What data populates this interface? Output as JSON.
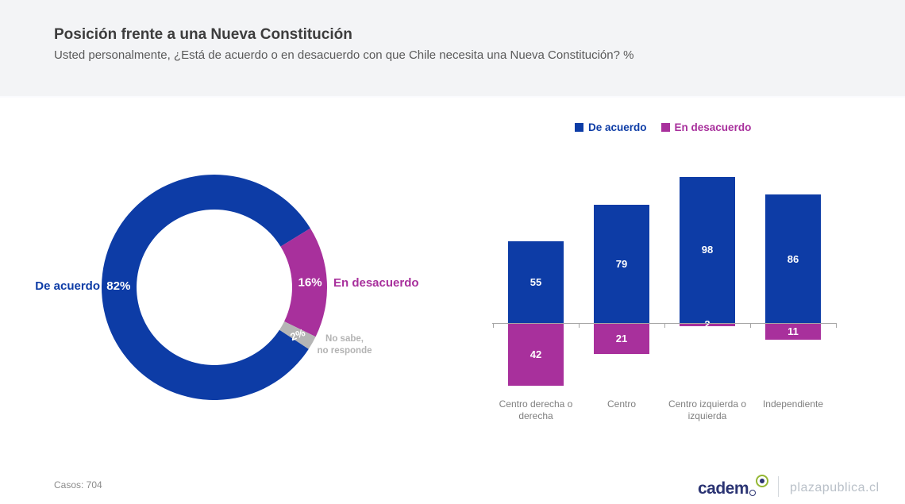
{
  "header": {
    "title": "Posición frente a una Nueva Constitución",
    "subtitle": "Usted personalmente, ¿Está de acuerdo o en desacuerdo con que Chile necesita una Nueva Constitución? %"
  },
  "colors": {
    "agree_blue": "#0d3ca6",
    "disagree_magenta": "#a8309c",
    "no_answer_gray": "#b5b5b5",
    "axis_gray": "#a6a6a6",
    "band_gray": "#f3f4f6"
  },
  "legend": [
    {
      "label": "De acuerdo",
      "color": "#0d3ca6"
    },
    {
      "label": "En desacuerdo",
      "color": "#a8309c"
    }
  ],
  "donut_callouts": {
    "left": "De acuerdo",
    "right": "En desacuerdo",
    "bottom_line1": "No sabe,",
    "bottom_line2": "no responde"
  },
  "chart_data": [
    {
      "type": "pie",
      "subtype": "donut",
      "labels": [
        "De acuerdo",
        "En desacuerdo",
        "No sabe, no responde"
      ],
      "values": [
        82,
        16,
        2
      ],
      "value_suffix": "%",
      "colors": [
        "#0d3ca6",
        "#a8309c",
        "#b5b5b5"
      ],
      "start_angle_deg": 123.2,
      "inner_radius_ratio": 0.69,
      "legend_position": "none"
    },
    {
      "type": "bar",
      "subtype": "diverging-column",
      "categories": [
        "Centro derecha o derecha",
        "Centro",
        "Centro izquierda o izquierda",
        "Independiente"
      ],
      "series": [
        {
          "name": "De acuerdo",
          "direction": "up",
          "color": "#0d3ca6",
          "values": [
            55,
            79,
            98,
            86
          ]
        },
        {
          "name": "En desacuerdo",
          "direction": "down",
          "color": "#a8309c",
          "values": [
            42,
            21,
            2,
            11
          ]
        }
      ],
      "xlabel": "",
      "ylabel": "",
      "grid": false,
      "legend_position": "top-right"
    }
  ],
  "footer": {
    "cases_label": "Casos: 704",
    "brand": "cadem",
    "site": "plazapublica.cl"
  }
}
